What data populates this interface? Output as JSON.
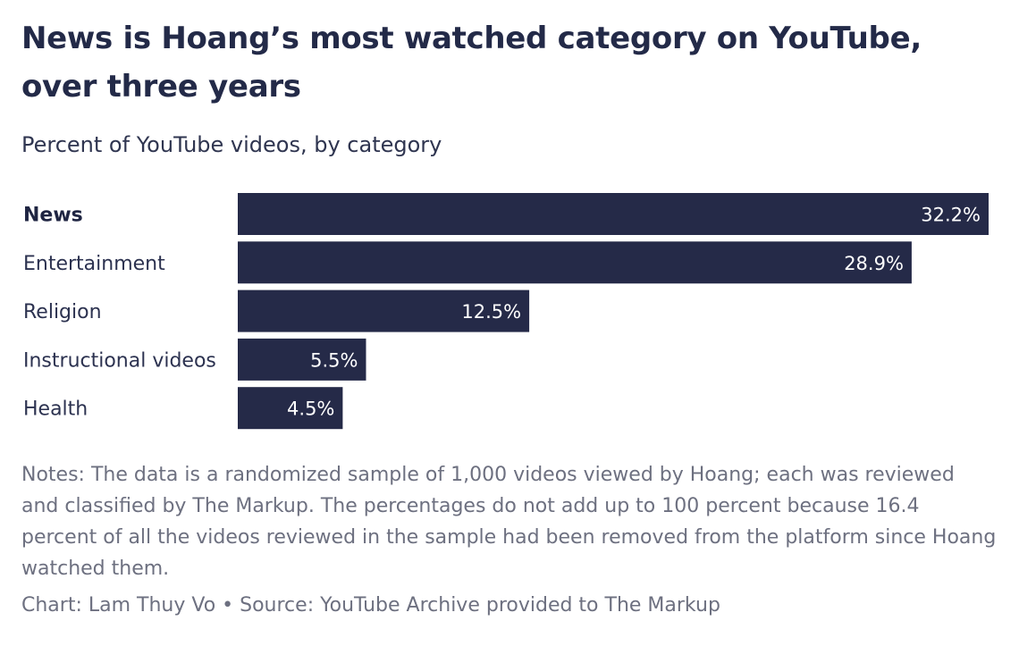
{
  "title": "News is Hoang’s most watched category on YouTube, over three years",
  "subtitle": "Percent of YouTube videos, by category",
  "notes": "Notes: The data is a randomized sample of 1,000 videos viewed by Hoang; each was reviewed and classified by The Markup. The percentages do not add up to 100 percent because 16.4 percent of all the videos reviewed in the sample had been removed from the platform since Hoang watched them.",
  "credit": "Chart: Lam Thuy Vo • Source: YouTube Archive provided to The Markup",
  "colors": {
    "bar": "#252a48",
    "value_text": "#ffffff"
  },
  "chart_data": {
    "type": "bar",
    "orientation": "horizontal",
    "categories": [
      "News",
      "Entertainment",
      "Religion",
      "Instructional videos",
      "Health"
    ],
    "values": [
      32.2,
      28.9,
      12.5,
      5.5,
      4.5
    ],
    "value_labels": [
      "32.2%",
      "28.9%",
      "12.5%",
      "5.5%",
      "4.5%"
    ],
    "highlighted_category": "News",
    "xlim": [
      0,
      32.2
    ],
    "grid": false,
    "legend": "none"
  }
}
